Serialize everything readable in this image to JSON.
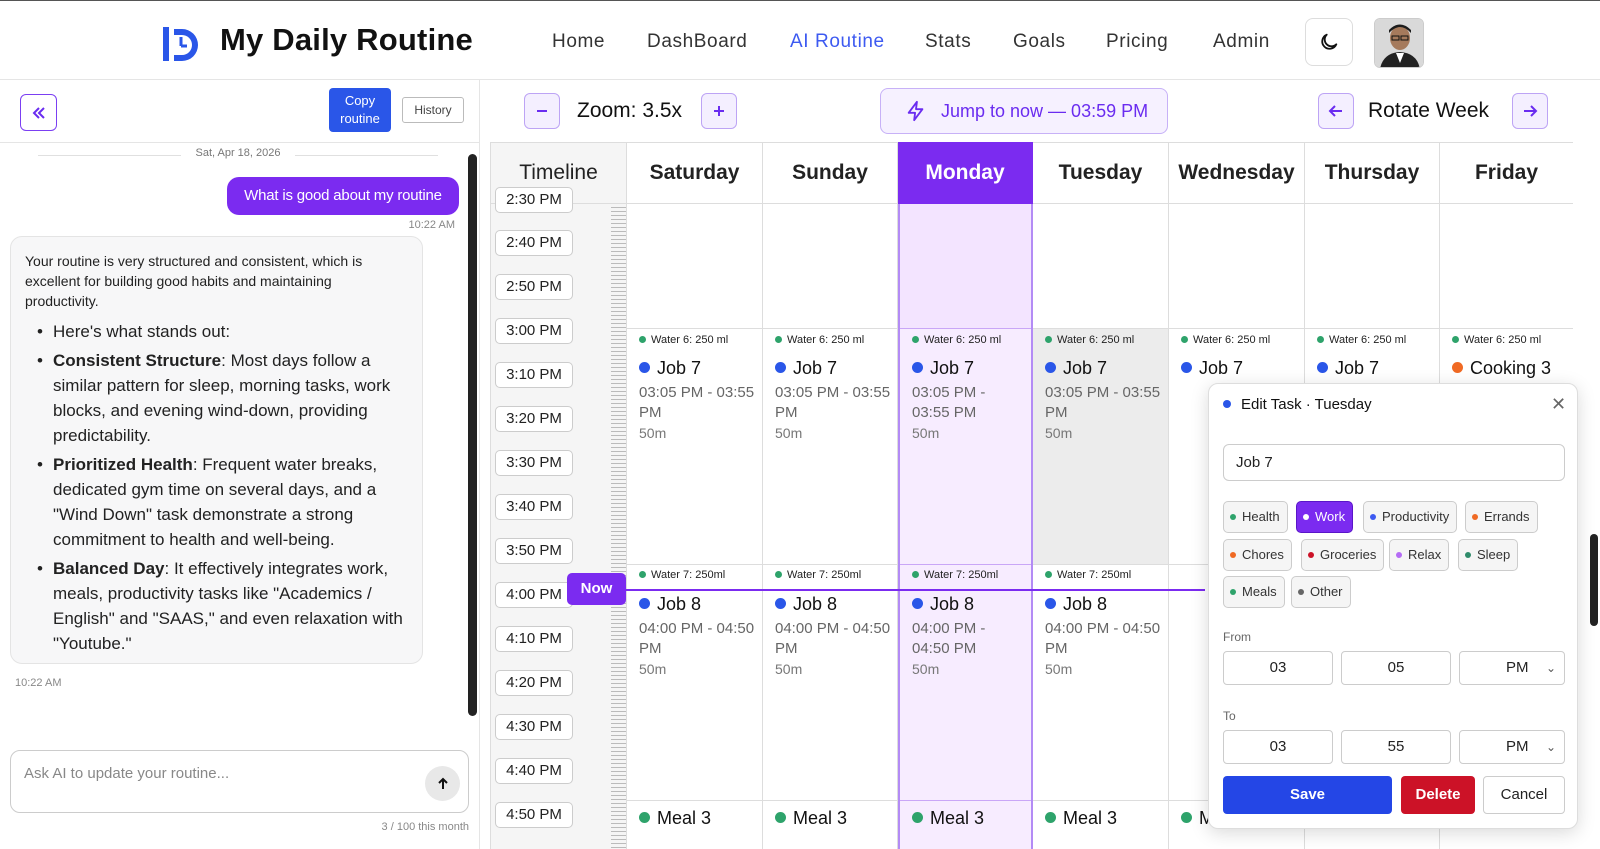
{
  "header": {
    "app_title": "My Daily Routine",
    "nav": [
      "Home",
      "DashBoard",
      "AI Routine",
      "Stats",
      "Goals",
      "Pricing",
      "Admin"
    ],
    "active_nav": "AI Routine",
    "accent_color": "#3d5af1"
  },
  "chat": {
    "copy_label": "Copy routine",
    "history_label": "History",
    "date": "Sat, Apr 18, 2026",
    "user_message": "What is good about my routine",
    "user_time": "10:22 AM",
    "ai_intro": "Your routine is very structured and consistent, which is excellent for building good habits and maintaining productivity.",
    "ai_points": [
      {
        "title": "",
        "text": "Here's what stands out:"
      },
      {
        "title": "Consistent Structure",
        "text": ": Most days follow a similar pattern for sleep, morning tasks, work blocks, and evening wind-down, providing predictability."
      },
      {
        "title": "Prioritized Health",
        "text": ": Frequent water breaks, dedicated gym time on several days, and a \"Wind Down\" task demonstrate a strong commitment to health and well-being."
      },
      {
        "title": "Balanced Day",
        "text": ": It effectively integrates work, meals, productivity tasks like \"Academics / English\" and \"SAAS,\" and even relaxation with \"Youtube.\""
      }
    ],
    "ai_time": "10:22 AM",
    "input_placeholder": "Ask AI to update your routine...",
    "quota": "3 / 100 this month",
    "user_bubble_color": "#7b2bf0"
  },
  "toolbar": {
    "zoom_label": "Zoom: 3.5x",
    "jump_label": "Jump to now — 03:59 PM",
    "rotate_label": "Rotate Week"
  },
  "calendar": {
    "timeline_header": "Timeline",
    "days": [
      "Saturday",
      "Sunday",
      "Monday",
      "Tuesday",
      "Wednesday",
      "Thursday",
      "Friday"
    ],
    "today": "Monday",
    "times": [
      "2:30 PM",
      "2:40 PM",
      "2:50 PM",
      "3:00 PM",
      "3:10 PM",
      "3:20 PM",
      "3:30 PM",
      "3:40 PM",
      "3:50 PM",
      "4:00 PM",
      "4:10 PM",
      "4:20 PM",
      "4:30 PM",
      "4:40 PM",
      "4:50 PM"
    ],
    "now_label": "Now",
    "water6": "Water 6: 250 ml",
    "water7": "Water 7: 250ml",
    "job7": {
      "name": "Job 7",
      "time": "03:05 PM - 03:55 PM",
      "dur": "50m"
    },
    "job8": {
      "name": "Job 8",
      "time": "04:00 PM - 04:50 PM",
      "dur": "50m"
    },
    "meal3": "Meal 3",
    "friday_task": "Cooking 3",
    "work_color": "#2a56e8",
    "water_color": "#2ea36b",
    "cooking_color": "#f06a24"
  },
  "modal": {
    "title": "Edit Task · Tuesday",
    "name_value": "Job 7",
    "categories": [
      {
        "label": "Health",
        "color": "#2ea36b"
      },
      {
        "label": "Work",
        "color": "#7b2bf0"
      },
      {
        "label": "Productivity",
        "color": "#3d5af1"
      },
      {
        "label": "Errands",
        "color": "#f06a24"
      },
      {
        "label": "Chores",
        "color": "#f06a24"
      },
      {
        "label": "Groceries",
        "color": "#cc1227"
      },
      {
        "label": "Relax",
        "color": "#b56cf5"
      },
      {
        "label": "Sleep",
        "color": "#2e8b6a"
      },
      {
        "label": "Meals",
        "color": "#2ea36b"
      },
      {
        "label": "Other",
        "color": "#666666"
      }
    ],
    "selected_category": "Work",
    "from_label": "From",
    "from_hour": "03",
    "from_min": "05",
    "from_ampm": "PM",
    "to_label": "To",
    "to_hour": "03",
    "to_min": "55",
    "to_ampm": "PM",
    "save_label": "Save",
    "delete_label": "Delete",
    "cancel_label": "Cancel"
  }
}
